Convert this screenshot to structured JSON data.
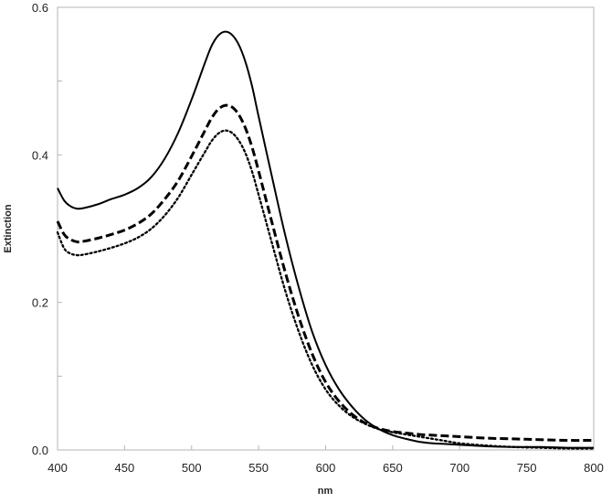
{
  "chart_data": {
    "type": "line",
    "title": "",
    "xlabel": "nm",
    "ylabel": "Extinction",
    "xlim": [
      400,
      800
    ],
    "ylim": [
      0,
      0.6
    ],
    "x_ticks": [
      400,
      450,
      500,
      550,
      600,
      650,
      700,
      750,
      800
    ],
    "y_ticks": [
      0.0,
      0.2,
      0.4,
      0.6
    ],
    "x_tick_labels": [
      "400",
      "450",
      "500",
      "550",
      "600",
      "650",
      "700",
      "750",
      "800"
    ],
    "y_tick_labels": [
      "0.0",
      "0.2",
      "0.4",
      "0.6"
    ],
    "y_minor_ticks": [
      0.1,
      0.3,
      0.5
    ],
    "grid": false,
    "legend": "none",
    "line_color": "#000000",
    "x": [
      400,
      405,
      410,
      415,
      420,
      430,
      440,
      450,
      460,
      470,
      480,
      490,
      500,
      510,
      515,
      520,
      525,
      530,
      535,
      540,
      545,
      550,
      560,
      570,
      580,
      590,
      600,
      610,
      620,
      630,
      640,
      650,
      660,
      670,
      680,
      690,
      700,
      720,
      740,
      760,
      780,
      800
    ],
    "series": [
      {
        "style": "solid",
        "values": [
          0.355,
          0.338,
          0.33,
          0.327,
          0.328,
          0.333,
          0.34,
          0.346,
          0.355,
          0.37,
          0.395,
          0.43,
          0.475,
          0.525,
          0.548,
          0.562,
          0.567,
          0.563,
          0.55,
          0.527,
          0.494,
          0.452,
          0.37,
          0.29,
          0.22,
          0.16,
          0.115,
          0.082,
          0.058,
          0.04,
          0.028,
          0.02,
          0.015,
          0.011,
          0.009,
          0.008,
          0.007,
          0.005,
          0.004,
          0.004,
          0.003,
          0.003
        ]
      },
      {
        "style": "dashed",
        "values": [
          0.31,
          0.292,
          0.285,
          0.282,
          0.283,
          0.287,
          0.292,
          0.298,
          0.307,
          0.32,
          0.34,
          0.365,
          0.398,
          0.433,
          0.45,
          0.462,
          0.467,
          0.465,
          0.455,
          0.437,
          0.411,
          0.378,
          0.308,
          0.24,
          0.18,
          0.13,
          0.092,
          0.066,
          0.048,
          0.036,
          0.029,
          0.025,
          0.023,
          0.021,
          0.02,
          0.019,
          0.018,
          0.016,
          0.015,
          0.014,
          0.013,
          0.013
        ]
      },
      {
        "style": "dotted",
        "values": [
          0.295,
          0.273,
          0.266,
          0.264,
          0.265,
          0.269,
          0.274,
          0.28,
          0.288,
          0.3,
          0.318,
          0.342,
          0.373,
          0.404,
          0.419,
          0.429,
          0.433,
          0.43,
          0.42,
          0.403,
          0.378,
          0.346,
          0.28,
          0.215,
          0.16,
          0.115,
          0.082,
          0.06,
          0.045,
          0.035,
          0.028,
          0.024,
          0.021,
          0.018,
          0.015,
          0.012,
          0.009,
          0.006,
          0.004,
          0.003,
          0.002,
          0.002
        ]
      }
    ]
  }
}
